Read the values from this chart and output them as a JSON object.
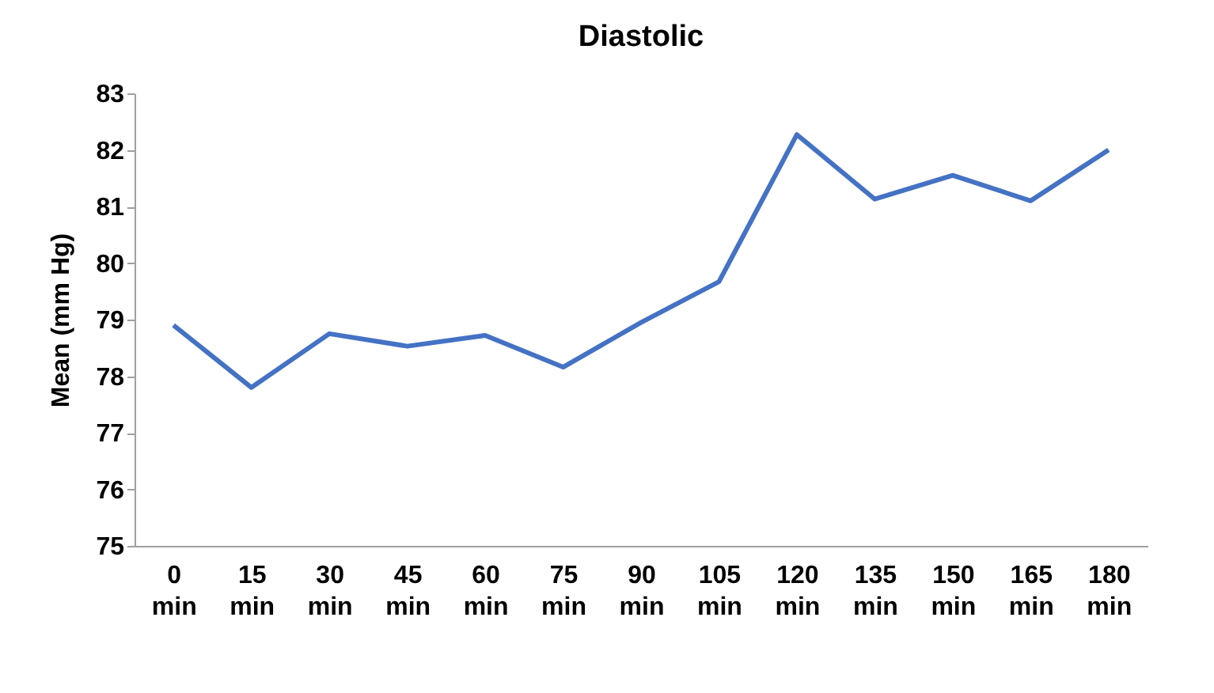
{
  "chart_data": {
    "type": "line",
    "title": "Diastolic",
    "ylabel": "Mean (mm Hg)",
    "categories": [
      "0 min",
      "15 min",
      "30 min",
      "45 min",
      "60 min",
      "75 min",
      "90 min",
      "105 min",
      "120 min",
      "135 min",
      "150 min",
      "165 min",
      "180 min"
    ],
    "series": [
      {
        "color": "#4472c4",
        "values": [
          78.9,
          77.8,
          78.75,
          78.53,
          78.72,
          78.16,
          78.95,
          79.67,
          82.27,
          81.13,
          81.55,
          81.1,
          82.0
        ]
      }
    ],
    "ylim": [
      75,
      83
    ],
    "yticks": [
      75,
      76,
      77,
      78,
      79,
      80,
      81,
      82,
      83
    ],
    "grid": false,
    "legend": false,
    "marker": "none",
    "line_style": "solid"
  }
}
